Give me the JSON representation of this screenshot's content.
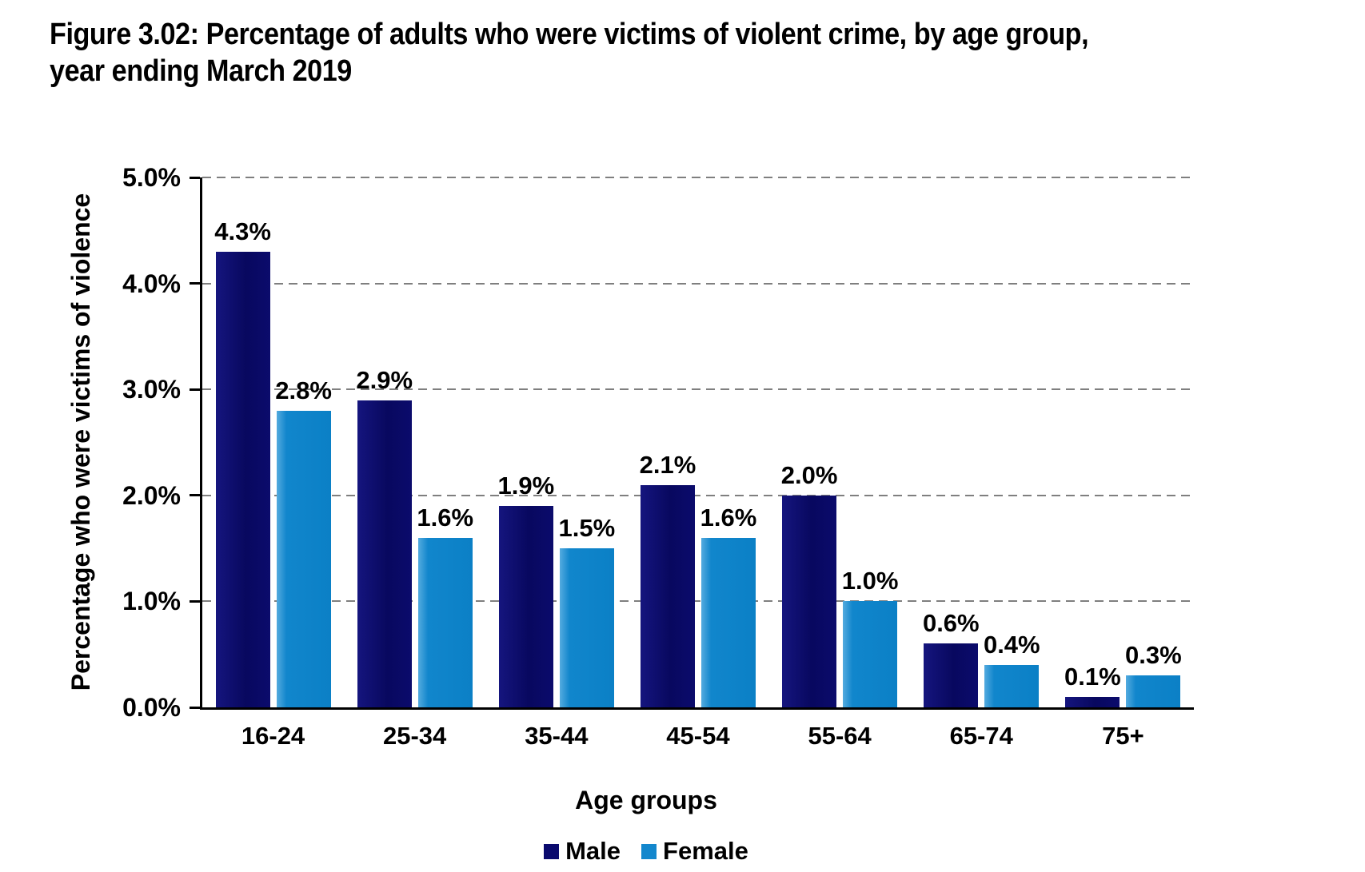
{
  "title": {
    "line1": "Figure 3.02: Percentage of adults who were victims of violent crime, by age group,",
    "line2": "year ending March 2019"
  },
  "chart_data": {
    "type": "bar",
    "title": "Figure 3.02: Percentage of adults who were victims of violent crime, by age group, year ending March 2019",
    "categories": [
      "16-24",
      "25-34",
      "35-44",
      "45-54",
      "55-64",
      "65-74",
      "75+"
    ],
    "series": [
      {
        "name": "Male",
        "color": "#0a0a6e",
        "values": [
          4.3,
          2.9,
          1.9,
          2.1,
          2.0,
          0.6,
          0.1
        ],
        "labels": [
          "4.3%",
          "2.9%",
          "1.9%",
          "2.1%",
          "2.0%",
          "0.6%",
          "0.1%"
        ]
      },
      {
        "name": "Female",
        "color": "#1387cd",
        "values": [
          2.8,
          1.6,
          1.5,
          1.6,
          1.0,
          0.4,
          0.3
        ],
        "labels": [
          "2.8%",
          "1.6%",
          "1.5%",
          "1.6%",
          "1.0%",
          "0.4%",
          "0.3%"
        ]
      }
    ],
    "xlabel": "Age groups",
    "ylabel": "Percentage who were victims of violence",
    "ylim": [
      0,
      5
    ],
    "ytick_labels": [
      "0.0%",
      "1.0%",
      "2.0%",
      "3.0%",
      "4.0%",
      "5.0%"
    ],
    "grid": "horizontal-dashed",
    "legend_position": "bottom-center",
    "data_labels": "above-bars"
  },
  "colors": {
    "male_bar": "#0a0a6e",
    "female_bar": "#1387cd",
    "gridline": "#7f7f7f",
    "axis": "#000000",
    "text": "#000000",
    "background": "#ffffff"
  }
}
